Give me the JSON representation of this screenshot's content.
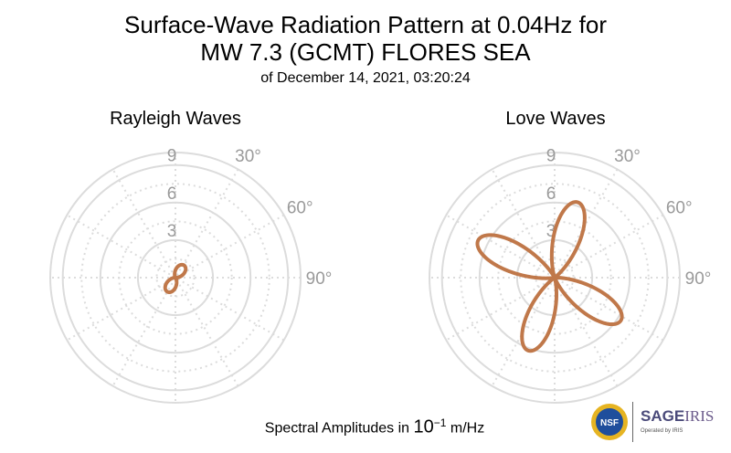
{
  "header": {
    "title_line1": "Surface-Wave Radiation Pattern at 0.04Hz for",
    "title_line2": "MW 7.3 (GCMT) FLORES SEA",
    "subtitle": "of December 14, 2021, 03:20:24"
  },
  "footer": {
    "label_prefix": "Spectral Amplitudes in ",
    "label_base": "10",
    "label_exp": "−1",
    "label_unit": " m/Hz"
  },
  "logos": {
    "nsf": "NSF",
    "sage": "SAGE",
    "iris": "IRIS",
    "operated": "Operated by IRIS"
  },
  "colors": {
    "pattern": "#c0784a",
    "grid": "#dcdcdc",
    "tick_text": "#9a9a9a"
  },
  "chart_data": [
    {
      "type": "polar-line",
      "title": "Rayleigh Waves",
      "radial_ticks": [
        3,
        6,
        9
      ],
      "rmax": 10,
      "angle_ticks": [
        "30°",
        "60°",
        "90°"
      ],
      "angle_zero": "north",
      "angle_direction": "clockwise",
      "series": [
        {
          "type": "two-lobe",
          "lobes": [
            {
              "azimuth_deg": 35,
              "amplitude": 1.2
            },
            {
              "azimuth_deg": 210,
              "amplitude": 1.3
            }
          ]
        }
      ]
    },
    {
      "type": "polar-line",
      "title": "Love Waves",
      "radial_ticks": [
        3,
        6,
        9
      ],
      "rmax": 10,
      "angle_ticks": [
        "30°",
        "60°",
        "90°"
      ],
      "angle_zero": "north",
      "angle_direction": "clockwise",
      "series": [
        {
          "type": "four-lobe",
          "lobes": [
            {
              "azimuth_deg": 17,
              "amplitude": 6.3
            },
            {
              "azimuth_deg": 123,
              "amplitude": 6.3
            },
            {
              "azimuth_deg": 200,
              "amplitude": 6.2
            },
            {
              "azimuth_deg": 296,
              "amplitude": 6.8
            }
          ]
        }
      ]
    }
  ]
}
